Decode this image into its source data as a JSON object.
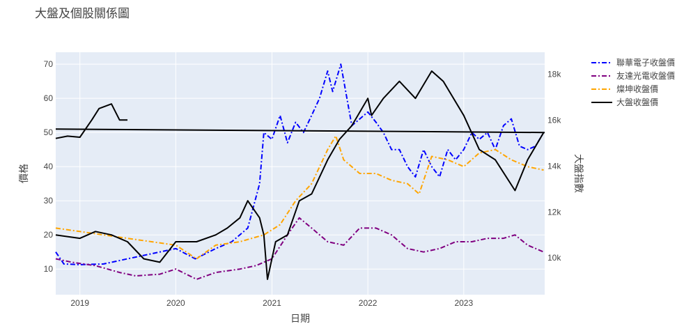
{
  "chart_data": {
    "type": "line",
    "title": "大盤及個股關係圖",
    "xlabel": "日期",
    "ylabel": "價格",
    "y2label": "大盤指數",
    "x_ticks": [
      "2019",
      "2020",
      "2021",
      "2022",
      "2023"
    ],
    "y_ticks": [
      "10",
      "20",
      "30",
      "40",
      "50",
      "60",
      "70"
    ],
    "y2_ticks": [
      "10k",
      "12k",
      "14k",
      "16k",
      "18k"
    ],
    "xlim": [
      "2018-10-01",
      "2023-11-05"
    ],
    "ylim": [
      2.5,
      73.5
    ],
    "y2lim": [
      8400,
      18950
    ],
    "grid": true,
    "legend_position": "top-right",
    "series": [
      {
        "name": "聯華電子收盤價",
        "axis": "y",
        "color": "#0000ff",
        "dash": "dashdot",
        "points": [
          [
            "2018-10-01",
            15
          ],
          [
            "2018-11-01",
            11.5
          ],
          [
            "2019-01-01",
            11.3
          ],
          [
            "2019-04-01",
            11.5
          ],
          [
            "2019-07-01",
            13
          ],
          [
            "2019-10-01",
            14.5
          ],
          [
            "2020-01-01",
            16
          ],
          [
            "2020-03-15",
            13
          ],
          [
            "2020-06-01",
            16
          ],
          [
            "2020-08-01",
            18
          ],
          [
            "2020-10-01",
            22
          ],
          [
            "2020-11-15",
            35
          ],
          [
            "2020-12-01",
            50
          ],
          [
            "2021-01-01",
            48
          ],
          [
            "2021-02-01",
            55
          ],
          [
            "2021-03-01",
            47
          ],
          [
            "2021-04-01",
            53
          ],
          [
            "2021-05-01",
            50
          ],
          [
            "2021-06-01",
            55
          ],
          [
            "2021-07-01",
            60
          ],
          [
            "2021-08-01",
            68
          ],
          [
            "2021-08-20",
            62
          ],
          [
            "2021-09-20",
            70
          ],
          [
            "2021-11-01",
            52
          ],
          [
            "2022-01-01",
            56
          ],
          [
            "2022-02-01",
            53
          ],
          [
            "2022-03-01",
            50
          ],
          [
            "2022-04-01",
            45
          ],
          [
            "2022-05-01",
            45
          ],
          [
            "2022-06-01",
            40
          ],
          [
            "2022-07-01",
            37
          ],
          [
            "2022-08-01",
            45
          ],
          [
            "2022-09-01",
            40
          ],
          [
            "2022-10-01",
            37
          ],
          [
            "2022-11-01",
            45
          ],
          [
            "2022-12-01",
            42
          ],
          [
            "2023-01-01",
            45
          ],
          [
            "2023-02-01",
            50
          ],
          [
            "2023-03-01",
            48
          ],
          [
            "2023-04-01",
            50
          ],
          [
            "2023-05-01",
            45
          ],
          [
            "2023-06-01",
            52
          ],
          [
            "2023-07-01",
            54
          ],
          [
            "2023-08-01",
            46
          ],
          [
            "2023-09-01",
            45
          ],
          [
            "2023-10-01",
            46
          ],
          [
            "2023-11-01",
            50
          ]
        ]
      },
      {
        "name": "友達光電收盤價",
        "axis": "y",
        "color": "#800080",
        "dash": "dashdot",
        "points": [
          [
            "2018-10-01",
            13
          ],
          [
            "2018-12-01",
            12
          ],
          [
            "2019-03-01",
            11
          ],
          [
            "2019-06-01",
            9
          ],
          [
            "2019-08-01",
            8
          ],
          [
            "2019-11-01",
            8.5
          ],
          [
            "2020-01-01",
            10
          ],
          [
            "2020-03-20",
            7
          ],
          [
            "2020-06-01",
            9
          ],
          [
            "2020-09-01",
            10
          ],
          [
            "2020-11-01",
            11
          ],
          [
            "2021-01-01",
            13
          ],
          [
            "2021-03-01",
            20
          ],
          [
            "2021-04-15",
            25
          ],
          [
            "2021-06-01",
            22
          ],
          [
            "2021-08-01",
            18
          ],
          [
            "2021-10-01",
            17
          ],
          [
            "2021-12-01",
            22
          ],
          [
            "2022-02-01",
            22
          ],
          [
            "2022-04-01",
            20
          ],
          [
            "2022-06-01",
            16
          ],
          [
            "2022-08-01",
            15
          ],
          [
            "2022-10-01",
            16
          ],
          [
            "2022-12-01",
            18
          ],
          [
            "2023-02-01",
            18
          ],
          [
            "2023-04-01",
            19
          ],
          [
            "2023-06-01",
            19
          ],
          [
            "2023-07-15",
            20
          ],
          [
            "2023-09-01",
            17
          ],
          [
            "2023-11-01",
            15
          ]
        ]
      },
      {
        "name": "燦坤收盤價",
        "axis": "y",
        "color": "#ffa500",
        "dash": "dashdot",
        "points": [
          [
            "2018-10-01",
            22
          ],
          [
            "2019-01-01",
            21
          ],
          [
            "2019-04-01",
            20
          ],
          [
            "2019-07-01",
            19
          ],
          [
            "2019-10-01",
            18
          ],
          [
            "2020-01-01",
            17
          ],
          [
            "2020-03-20",
            13
          ],
          [
            "2020-06-01",
            17
          ],
          [
            "2020-09-01",
            18
          ],
          [
            "2020-12-01",
            20
          ],
          [
            "2021-02-01",
            23
          ],
          [
            "2021-04-01",
            30
          ],
          [
            "2021-06-01",
            35
          ],
          [
            "2021-08-01",
            45
          ],
          [
            "2021-09-01",
            49
          ],
          [
            "2021-10-01",
            42
          ],
          [
            "2021-12-01",
            38
          ],
          [
            "2022-02-01",
            38
          ],
          [
            "2022-04-01",
            36
          ],
          [
            "2022-06-01",
            35
          ],
          [
            "2022-07-15",
            32
          ],
          [
            "2022-09-01",
            43
          ],
          [
            "2022-11-01",
            42
          ],
          [
            "2023-01-01",
            40
          ],
          [
            "2023-03-01",
            44
          ],
          [
            "2023-05-01",
            45
          ],
          [
            "2023-07-01",
            42
          ],
          [
            "2023-09-01",
            40
          ],
          [
            "2023-11-01",
            39
          ]
        ]
      },
      {
        "name": "大盤收盤價",
        "axis": "y2",
        "color": "#000000",
        "dash": "solid",
        "points": [
          [
            "2018-10-01",
            15200
          ],
          [
            "2018-11-15",
            15300
          ],
          [
            "2019-01-01",
            15250
          ],
          [
            "2019-02-15",
            16000
          ],
          [
            "2019-03-15",
            16500
          ],
          [
            "2019-05-01",
            16700
          ],
          [
            "2019-06-01",
            16000
          ],
          [
            "2019-07-01",
            16000
          ]
        ]
      },
      {
        "name": "大盤收盤價",
        "axis": "y",
        "color": "#000000",
        "dash": "solid",
        "points": [
          [
            "2018-10-01",
            20
          ],
          [
            "2019-01-01",
            19
          ],
          [
            "2019-03-01",
            21
          ],
          [
            "2019-05-01",
            20
          ],
          [
            "2019-07-01",
            18
          ],
          [
            "2019-09-01",
            13
          ],
          [
            "2019-11-01",
            12
          ],
          [
            "2020-01-01",
            18
          ],
          [
            "2020-03-20",
            18
          ],
          [
            "2020-06-01",
            20
          ],
          [
            "2020-07-15",
            22
          ],
          [
            "2020-09-01",
            25
          ],
          [
            "2020-10-01",
            30
          ],
          [
            "2020-11-15",
            25
          ],
          [
            "2020-12-01",
            20
          ],
          [
            "2020-12-15",
            7
          ],
          [
            "2021-01-15",
            18
          ],
          [
            "2021-03-01",
            20
          ],
          [
            "2021-04-15",
            30
          ],
          [
            "2021-06-01",
            32
          ],
          [
            "2021-08-01",
            42
          ],
          [
            "2021-09-15",
            48
          ],
          [
            "2021-11-01",
            52
          ],
          [
            "2022-01-01",
            60
          ],
          [
            "2022-01-15",
            55
          ],
          [
            "2022-03-01",
            60
          ],
          [
            "2022-05-01",
            65
          ],
          [
            "2022-07-01",
            60
          ],
          [
            "2022-09-01",
            68
          ],
          [
            "2022-10-15",
            65
          ],
          [
            "2023-01-01",
            55
          ],
          [
            "2023-03-01",
            45
          ],
          [
            "2023-05-01",
            42
          ],
          [
            "2023-07-15",
            33
          ],
          [
            "2023-09-01",
            42
          ],
          [
            "2023-11-01",
            50
          ]
        ]
      },
      {
        "name": "大盤收盤價",
        "axis": "y",
        "color": "#000000",
        "dash": "solid",
        "points": [
          [
            "2018-10-01",
            51
          ],
          [
            "2023-11-05",
            50
          ]
        ]
      }
    ]
  }
}
